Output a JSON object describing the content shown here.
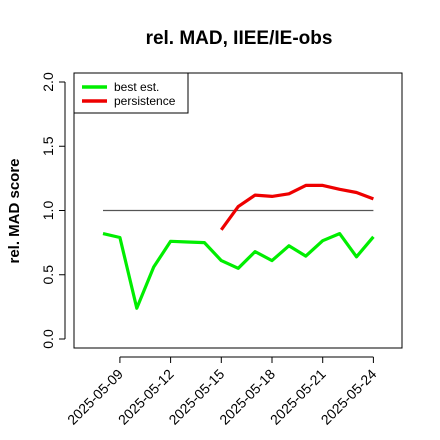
{
  "chart_data": {
    "type": "line",
    "title": "rel. MAD, IIEE/IE-obs",
    "xlabel": "",
    "ylabel": "rel. MAD score",
    "ylim": [
      0.0,
      2.0
    ],
    "yticks": [
      "0.0",
      "0.5",
      "1.0",
      "1.5",
      "2.0"
    ],
    "xticks": [
      "2025-05-09",
      "2025-05-12",
      "2025-05-15",
      "2025-05-18",
      "2025-05-21",
      "2025-05-24"
    ],
    "x": [
      "2025-05-08",
      "2025-05-09",
      "2025-05-10",
      "2025-05-11",
      "2025-05-12",
      "2025-05-13",
      "2025-05-14",
      "2025-05-15",
      "2025-05-16",
      "2025-05-17",
      "2025-05-18",
      "2025-05-19",
      "2025-05-20",
      "2025-05-21",
      "2025-05-22",
      "2025-05-23",
      "2025-05-24"
    ],
    "reference_line": 1.0,
    "legend_position": "top-left",
    "series": [
      {
        "name": "best est.",
        "color": "#00ee00",
        "values": [
          0.82,
          0.79,
          0.24,
          0.56,
          0.76,
          0.755,
          0.75,
          0.61,
          0.55,
          0.68,
          0.61,
          0.725,
          0.645,
          0.765,
          0.82,
          0.64,
          0.795
        ]
      },
      {
        "name": "persistence",
        "color": "#ee0000",
        "values": [
          null,
          null,
          null,
          null,
          null,
          null,
          null,
          0.85,
          1.03,
          1.12,
          1.11,
          1.13,
          1.195,
          1.195,
          1.165,
          1.14,
          1.09
        ]
      }
    ]
  }
}
